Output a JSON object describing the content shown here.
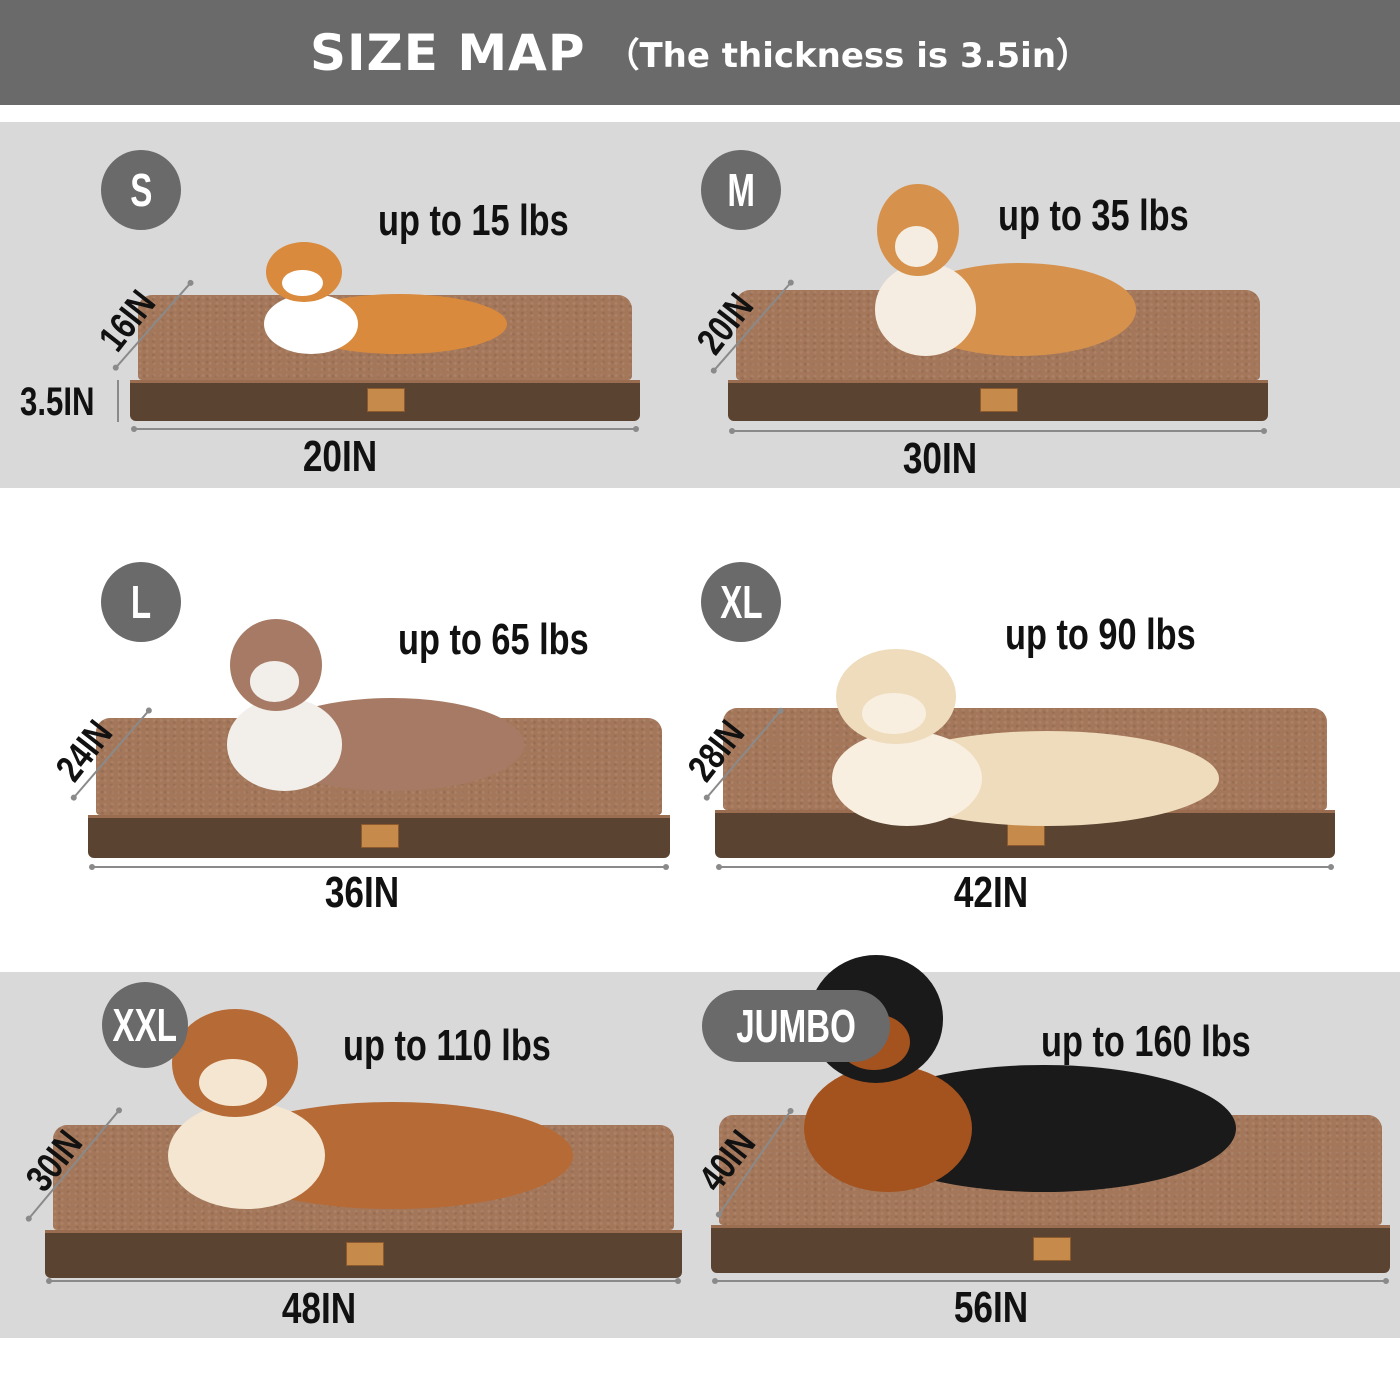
{
  "header": {
    "title": "SIZE MAP",
    "subtitle": "（The thickness is 3.5in）"
  },
  "colors": {
    "header_bg": "#6a6a6a",
    "band_bg": "#d9d9d9",
    "badge_bg": "#6a6a6a",
    "bed_top": "#a4775a",
    "bed_side": "#5a4331"
  },
  "sizes": [
    {
      "size": "S",
      "weight": "up to 15 lbs",
      "length": "20IN",
      "width": "16IN",
      "height": "3.5IN",
      "dog": "corgi puppy",
      "dog_colors": [
        "#d98a3c",
        "#ffffff"
      ]
    },
    {
      "size": "M",
      "weight": "up to 35 lbs",
      "length": "30IN",
      "width": "20IN",
      "dog": "shiba inu",
      "dog_colors": [
        "#d6924c",
        "#f5ede2"
      ]
    },
    {
      "size": "L",
      "weight": "up to 65 lbs",
      "length": "36IN",
      "width": "24IN",
      "dog": "australian shepherd",
      "dog_colors": [
        "#a67a64",
        "#f2eeea"
      ]
    },
    {
      "size": "XL",
      "weight": "up to 90 lbs",
      "length": "42IN",
      "width": "28IN",
      "dog": "golden retriever",
      "dog_colors": [
        "#efdcbc",
        "#f8efe0"
      ]
    },
    {
      "size": "XXL",
      "weight": "up to 110 lbs",
      "length": "48IN",
      "width": "30IN",
      "dog": "alaskan malamute",
      "dog_colors": [
        "#b66a36",
        "#f4e6d0"
      ]
    },
    {
      "size": "JUMBO",
      "weight": "up to 160 lbs",
      "length": "56IN",
      "width": "40IN",
      "dog": "doberman",
      "dog_colors": [
        "#1a1a1a",
        "#a4521e"
      ]
    }
  ]
}
